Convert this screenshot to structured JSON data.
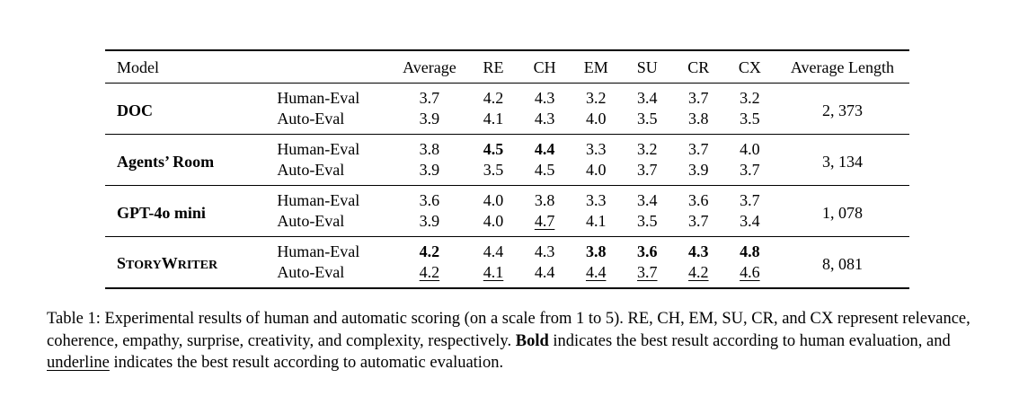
{
  "table": {
    "headers": [
      "Model",
      "",
      "Average",
      "RE",
      "CH",
      "EM",
      "SU",
      "CR",
      "CX",
      "Average Length"
    ],
    "rows": [
      {
        "model": "DOC",
        "length": "2, 373",
        "human": {
          "label": "Human-Eval",
          "values": [
            "3.7",
            "4.2",
            "4.3",
            "3.2",
            "3.4",
            "3.7",
            "3.2"
          ]
        },
        "auto": {
          "label": "Auto-Eval",
          "values": [
            "3.9",
            "4.1",
            "4.3",
            "4.0",
            "3.5",
            "3.8",
            "3.5"
          ]
        }
      },
      {
        "model": "Agents’ Room",
        "length": "3, 134",
        "human": {
          "label": "Human-Eval",
          "values": [
            "3.8",
            "4.5",
            "4.4",
            "3.3",
            "3.2",
            "3.7",
            "4.0"
          ]
        },
        "auto": {
          "label": "Auto-Eval",
          "values": [
            "3.9",
            "3.5",
            "4.5",
            "4.0",
            "3.7",
            "3.9",
            "3.7"
          ]
        }
      },
      {
        "model": "GPT-4o mini",
        "length": "1, 078",
        "human": {
          "label": "Human-Eval",
          "values": [
            "3.6",
            "4.0",
            "3.8",
            "3.3",
            "3.4",
            "3.6",
            "3.7"
          ]
        },
        "auto": {
          "label": "Auto-Eval",
          "values": [
            "3.9",
            "4.0",
            "4.7",
            "4.1",
            "3.5",
            "3.7",
            "3.4"
          ]
        }
      },
      {
        "model": "StoryWriter",
        "model_parts": [
          "S",
          "TORY",
          "W",
          "RITER"
        ],
        "length": "8, 081",
        "human": {
          "label": "Human-Eval",
          "values": [
            "4.2",
            "4.4",
            "4.3",
            "3.8",
            "3.6",
            "4.3",
            "4.8"
          ]
        },
        "auto": {
          "label": "Auto-Eval",
          "values": [
            "4.2",
            "4.1",
            "4.4",
            "4.4",
            "3.7",
            "4.2",
            "4.6"
          ]
        }
      }
    ],
    "bold_cells": [
      [
        1,
        "human",
        1
      ],
      [
        1,
        "human",
        2
      ],
      [
        3,
        "human",
        0
      ],
      [
        3,
        "human",
        3
      ],
      [
        3,
        "human",
        4
      ],
      [
        3,
        "human",
        5
      ],
      [
        3,
        "human",
        6
      ]
    ],
    "underline_cells": [
      [
        2,
        "auto",
        2
      ],
      [
        3,
        "auto",
        0
      ],
      [
        3,
        "auto",
        1
      ],
      [
        3,
        "auto",
        3
      ],
      [
        3,
        "auto",
        4
      ],
      [
        3,
        "auto",
        5
      ],
      [
        3,
        "auto",
        6
      ]
    ]
  },
  "caption": {
    "label": "Table 1:",
    "text1": "Experimental results of human and automatic scoring (on a scale from 1 to 5). RE, CH, EM, SU, CR, and CX represent relevance, coherence, empathy, surprise, creativity, and complexity, respectively.",
    "bold_word": "Bold",
    "text2": "indicates the best result according to human evaluation, and",
    "underline_word": "underline",
    "text3": "indicates the best result according to automatic evaluation."
  }
}
